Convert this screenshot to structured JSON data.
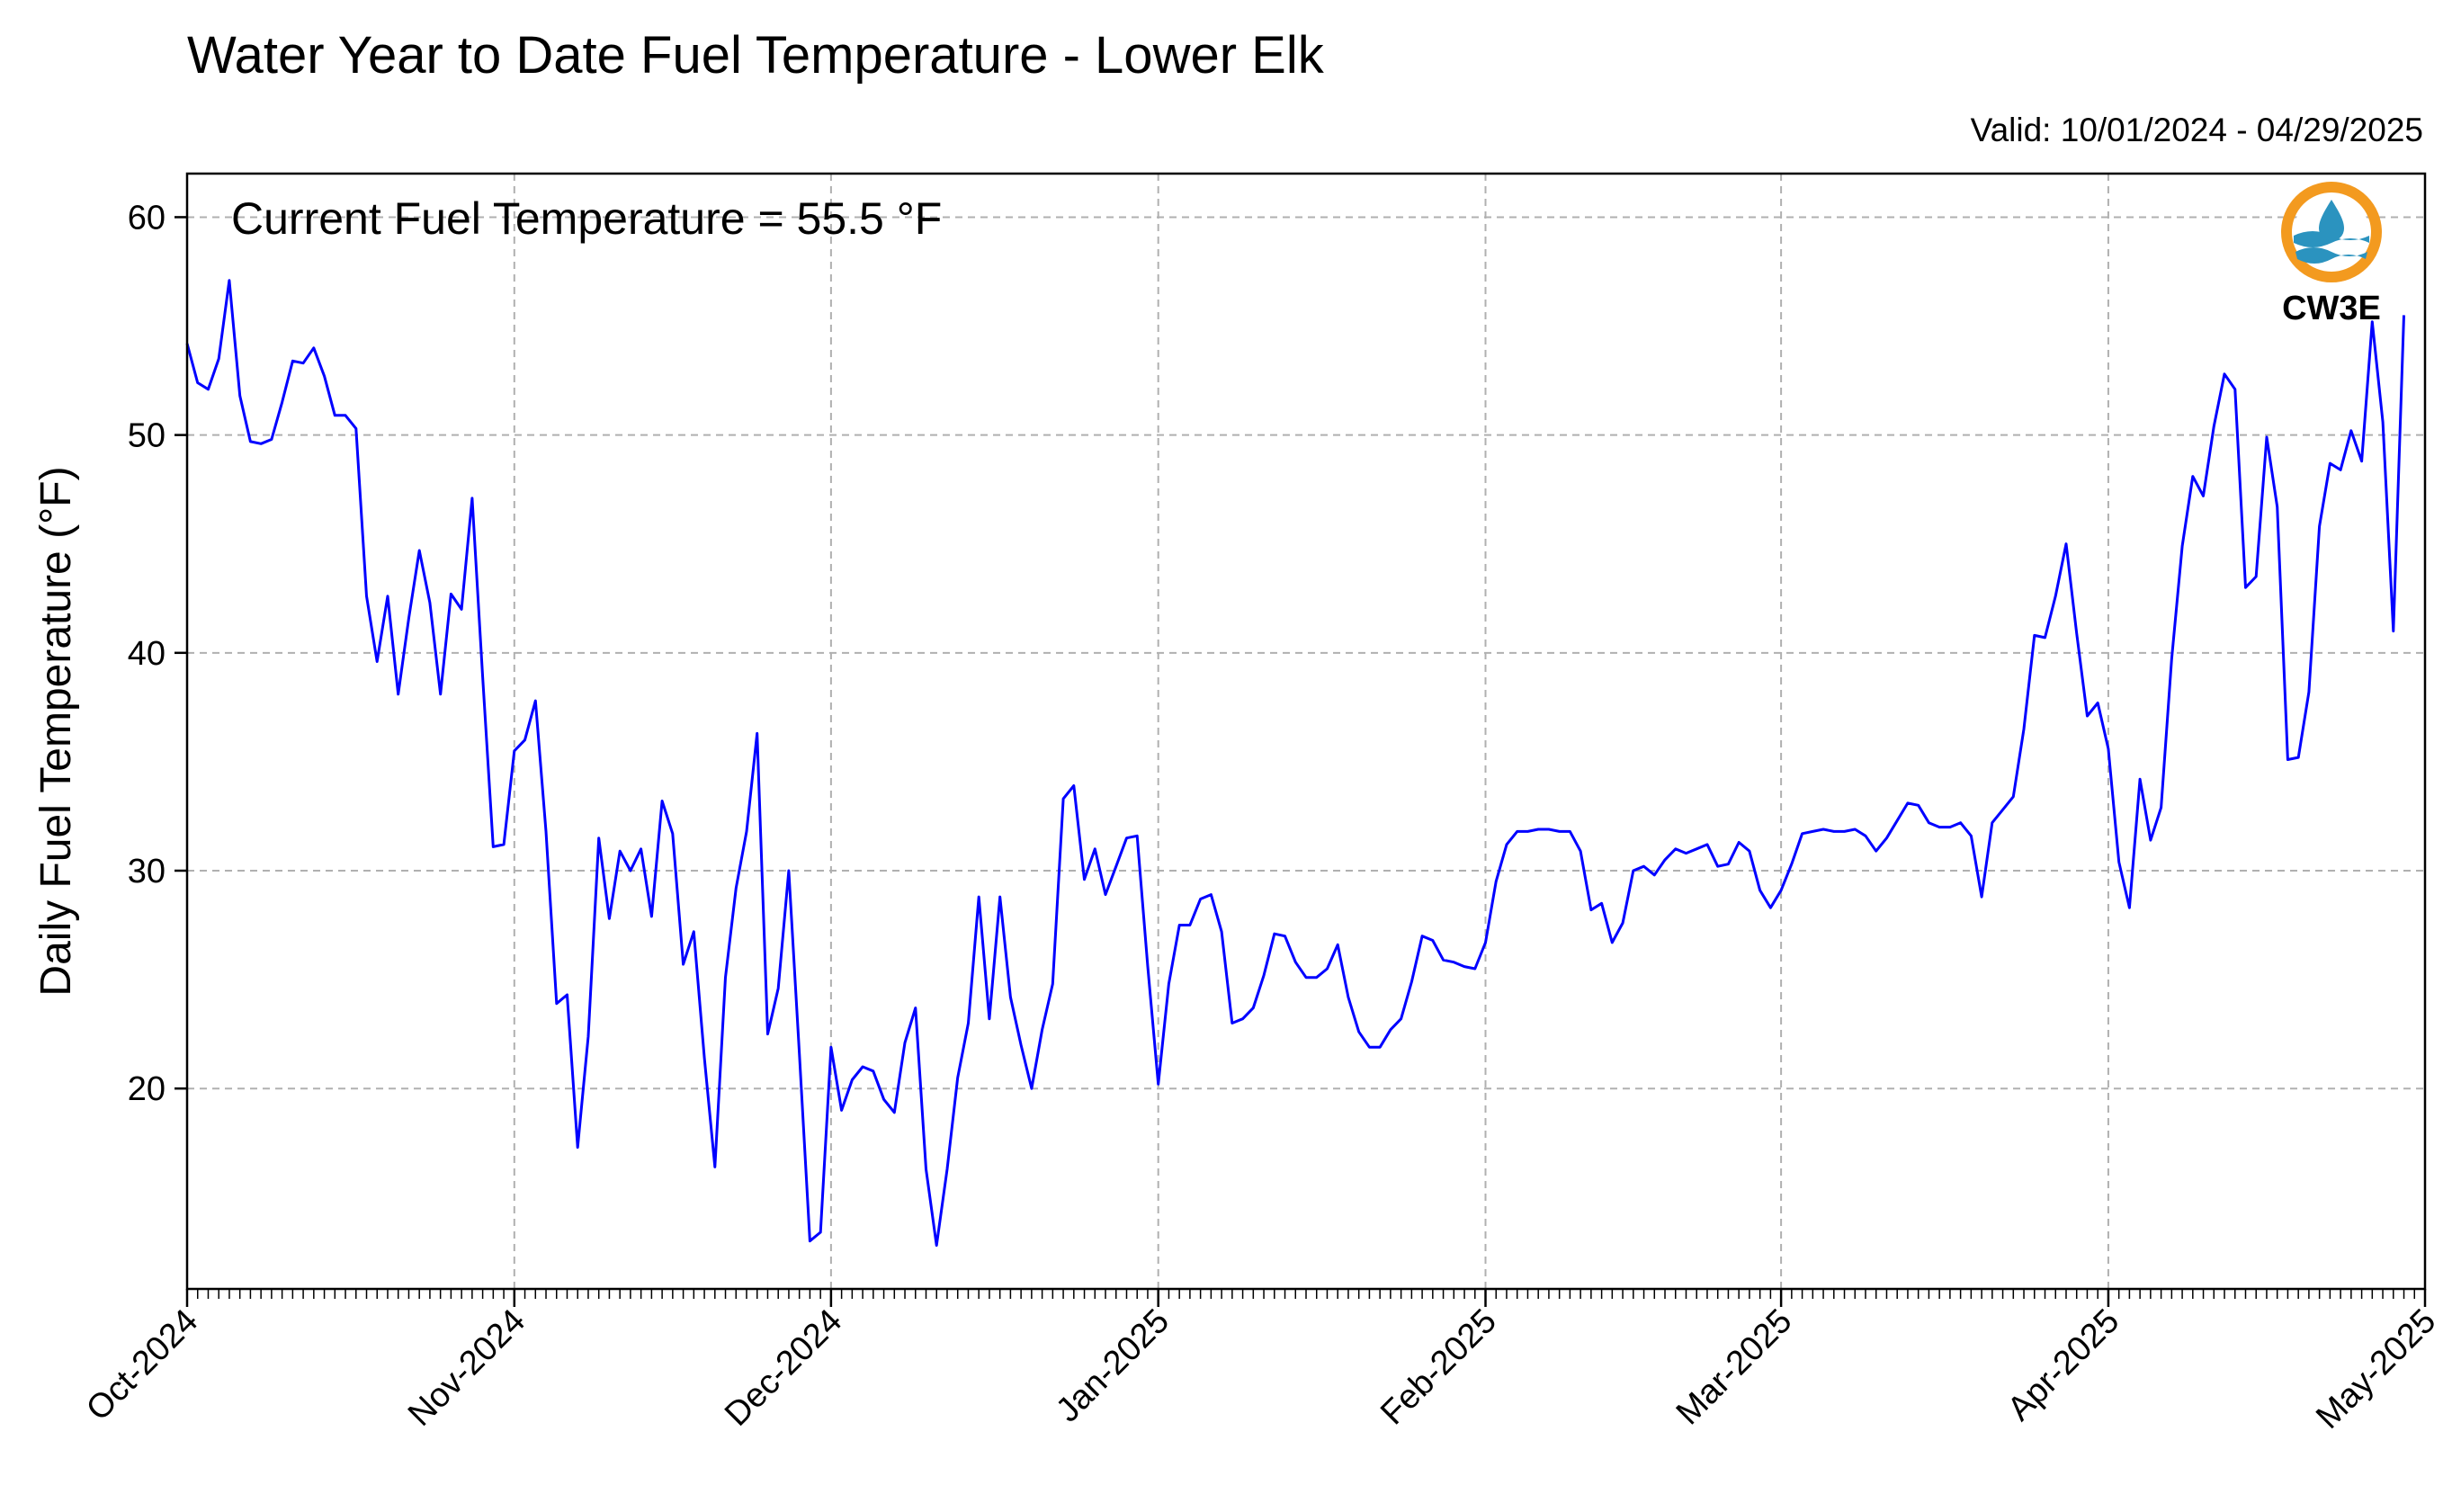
{
  "title": "Water Year to Date Fuel Temperature - Lower Elk",
  "valid": "Valid: 10/01/2024 - 04/29/2025",
  "annotation": "Current Fuel Temperature = 55.5 °F",
  "logo": {
    "text": "CW3E",
    "ring_color": "#f39a1f",
    "wave_color": "#2b93bf",
    "drop_color": "#2b93bf"
  },
  "colors": {
    "line": "#0000ff",
    "grid": "#b0b0b0"
  },
  "chart_data": {
    "type": "line",
    "title": "Water Year to Date Fuel Temperature - Lower Elk",
    "xlabel": "",
    "ylabel": "Daily Fuel Temperature (°F)",
    "ylim": [
      10.8,
      62
    ],
    "yticks": [
      20,
      30,
      40,
      50,
      60
    ],
    "xlim": [
      "2024-10-01",
      "2025-05-01"
    ],
    "xtick_labels": [
      "Oct-2024",
      "Nov-2024",
      "Dec-2024",
      "Jan-2025",
      "Feb-2025",
      "Mar-2025",
      "Apr-2025",
      "May-2025"
    ],
    "grid": true,
    "start_date": "2024-10-01",
    "end_date": "2025-04-29",
    "series": [
      {
        "values": [
          54.2,
          52.4,
          52.1,
          53.5,
          57.1,
          51.8,
          49.7,
          49.6,
          49.8,
          51.5,
          53.4,
          53.3,
          54.0,
          52.7,
          50.9,
          50.9,
          50.3,
          42.6,
          39.6,
          42.6,
          38.1,
          41.6,
          44.7,
          42.3,
          38.1,
          42.7,
          42.0,
          47.1,
          38.9,
          31.1,
          31.2,
          35.5,
          36.0,
          37.8,
          31.8,
          23.9,
          24.3,
          17.3,
          22.4,
          31.5,
          27.8,
          30.9,
          30.0,
          31.0,
          27.9,
          33.2,
          31.7,
          25.7,
          27.2,
          21.4,
          16.4,
          25.1,
          29.2,
          31.8,
          36.3,
          22.5,
          24.6,
          30.0,
          21.6,
          13.0,
          13.4,
          21.9,
          19.0,
          20.4,
          21.0,
          20.8,
          19.5,
          18.9,
          22.1,
          23.7,
          16.3,
          12.8,
          16.3,
          20.5,
          23.0,
          28.8,
          23.2,
          28.8,
          24.2,
          22.0,
          20.0,
          22.7,
          24.8,
          33.3,
          33.9,
          29.6,
          31.0,
          28.9,
          30.2,
          31.5,
          31.6,
          25.6,
          20.2,
          24.8,
          27.5,
          27.5,
          28.7,
          28.9,
          27.2,
          23.0,
          23.2,
          23.7,
          25.2,
          27.1,
          27.0,
          25.8,
          25.1,
          25.1,
          25.5,
          26.6,
          24.2,
          22.6,
          21.9,
          21.9,
          22.7,
          23.2,
          24.9,
          27.0,
          26.8,
          25.9,
          25.8,
          25.6,
          25.5,
          26.7,
          29.5,
          31.2,
          31.8,
          31.8,
          31.9,
          31.9,
          31.8,
          31.8,
          30.9,
          28.2,
          28.5,
          26.7,
          27.6,
          30.0,
          30.2,
          29.8,
          30.5,
          31.0,
          30.8,
          31.0,
          31.2,
          30.2,
          30.3,
          31.3,
          30.9,
          29.1,
          28.3,
          29.1,
          30.3,
          31.7,
          31.8,
          31.9,
          31.8,
          31.8,
          31.9,
          31.6,
          30.9,
          31.5,
          32.3,
          33.1,
          33.0,
          32.2,
          32.0,
          32.0,
          32.2,
          31.6,
          28.8,
          32.2,
          32.8,
          33.4,
          36.5,
          40.8,
          40.7,
          42.6,
          45.0,
          40.9,
          37.1,
          37.7,
          35.6,
          30.4,
          28.3,
          34.2,
          31.4,
          32.9,
          39.7,
          44.9,
          48.1,
          47.2,
          50.4,
          52.8,
          52.1,
          43.0,
          43.5,
          49.9,
          46.7,
          35.1,
          35.2,
          38.2,
          45.8,
          48.7,
          48.4,
          50.2,
          48.8,
          55.2,
          50.6,
          41.0,
          55.5
        ]
      }
    ]
  }
}
